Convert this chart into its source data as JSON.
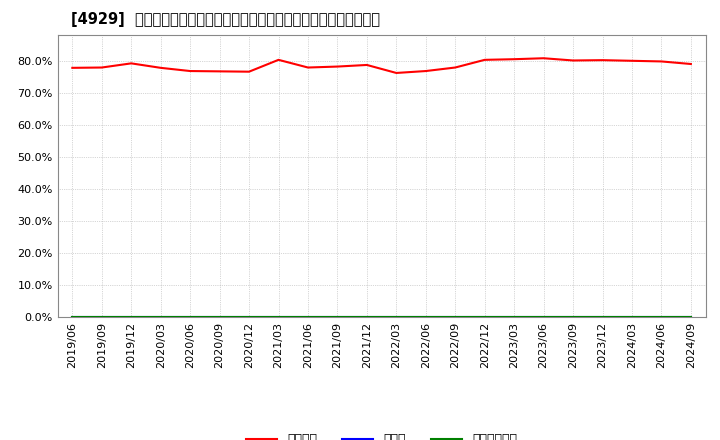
{
  "title": "[4929]  自己資本、のれん、繰延税金資産の総資産に対する比率の推移",
  "x_labels": [
    "2019/06",
    "2019/09",
    "2019/12",
    "2020/03",
    "2020/06",
    "2020/09",
    "2020/12",
    "2021/03",
    "2021/06",
    "2021/09",
    "2021/12",
    "2022/03",
    "2022/06",
    "2022/09",
    "2022/12",
    "2023/03",
    "2023/06",
    "2023/09",
    "2023/12",
    "2024/03",
    "2024/06",
    "2024/09"
  ],
  "series": {
    "自己資本": {
      "color": "#ff0000",
      "values": [
        0.778,
        0.779,
        0.792,
        0.778,
        0.768,
        0.767,
        0.766,
        0.803,
        0.779,
        0.782,
        0.787,
        0.762,
        0.768,
        0.779,
        0.803,
        0.805,
        0.808,
        0.801,
        0.802,
        0.8,
        0.798,
        0.79
      ]
    },
    "のれん": {
      "color": "#0000ff",
      "values": [
        0.0,
        0.0,
        0.0,
        0.0,
        0.0,
        0.0,
        0.0,
        0.0,
        0.0,
        0.0,
        0.0,
        0.0,
        0.0,
        0.0,
        0.0,
        0.0,
        0.0,
        0.0,
        0.0,
        0.0,
        0.0,
        0.0
      ]
    },
    "繰延税金資産": {
      "color": "#008000",
      "values": [
        0.0,
        0.0,
        0.0,
        0.0,
        0.0,
        0.0,
        0.0,
        0.0,
        0.0,
        0.0,
        0.0,
        0.0,
        0.0,
        0.0,
        0.0,
        0.0,
        0.0,
        0.0,
        0.0,
        0.0,
        0.0,
        0.0
      ]
    }
  },
  "ylim": [
    0.0,
    0.88
  ],
  "yticks": [
    0.0,
    0.1,
    0.2,
    0.3,
    0.4,
    0.5,
    0.6,
    0.7,
    0.8
  ],
  "background_color": "#ffffff",
  "plot_bg_color": "#ffffff",
  "grid_color": "#b0b0b0",
  "title_fontsize": 10.5,
  "legend_fontsize": 9,
  "tick_fontsize": 8
}
